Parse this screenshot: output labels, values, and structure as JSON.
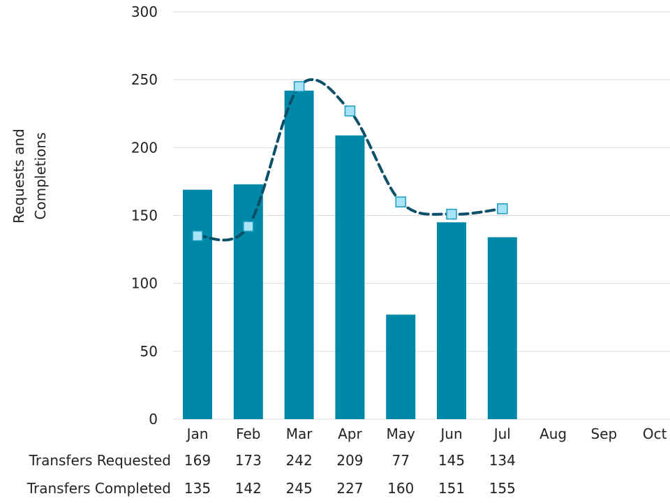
{
  "chart_data": {
    "type": "bar",
    "title": "",
    "xlabel": "",
    "ylabel": [
      "Requests and",
      "Completions"
    ],
    "ylim": [
      0,
      300
    ],
    "yticks": [
      0,
      50,
      100,
      150,
      200,
      250,
      300
    ],
    "grid": true,
    "categories": [
      "Jan",
      "Feb",
      "Mar",
      "Apr",
      "May",
      "Jun",
      "Jul",
      "Aug",
      "Sep",
      "Oct"
    ],
    "series": [
      {
        "name": "Transfers Requested",
        "render": "bar",
        "color": "#0088a8",
        "values": [
          169,
          173,
          242,
          209,
          77,
          145,
          134,
          null,
          null,
          null
        ]
      },
      {
        "name": "Transfers Completed",
        "render": "smooth-dashed-line-with-square-markers",
        "line_color": "#0b4f68",
        "marker_fill": "#a8e4f5",
        "marker_stroke": "#1a9cc4",
        "values": [
          135,
          142,
          245,
          227,
          160,
          151,
          155,
          null,
          null,
          null
        ]
      }
    ],
    "data_table": {
      "rows": [
        {
          "label": "Transfers Requested",
          "series_index": 0
        },
        {
          "label": "Transfers Completed",
          "series_index": 1
        }
      ]
    }
  }
}
